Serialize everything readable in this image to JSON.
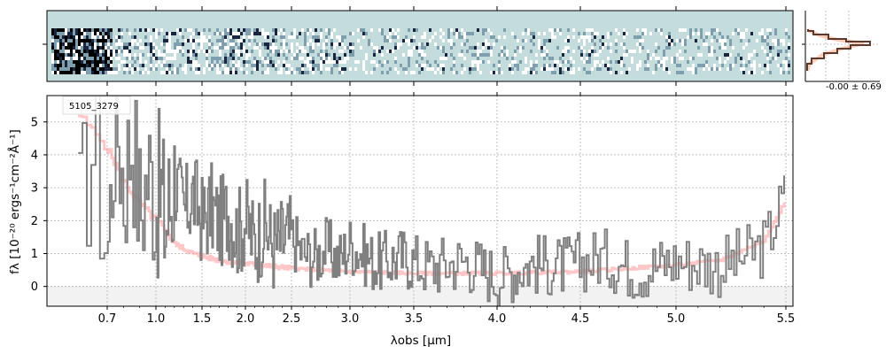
{
  "chart_data": [
    {
      "panel": "2d-spectrum",
      "type": "heatmap",
      "colormap": [
        "#ffffff",
        "#c5dcdc",
        "#7f9fae",
        "#1a2540",
        "#000000"
      ],
      "background": "#c5dcdc"
    },
    {
      "panel": "1d-spectrum",
      "type": "line",
      "object_label": "5105_3279",
      "xlabel": "λobs [μm]",
      "ylabel": "fλ [10⁻²⁰ ergs⁻¹cm⁻²Å⁻¹]",
      "x_scale": "nonlinear (pixel grid)",
      "xlim": [
        0.6,
        5.52
      ],
      "ylim": [
        -0.6,
        5.8
      ],
      "x_ticks": [
        "0.7",
        "1.0",
        "1.5",
        "2.0",
        "2.5",
        "3.0",
        "3.5",
        "4.0",
        "4.5",
        "5.0",
        "5.5"
      ],
      "x_tick_values": [
        0.7,
        1.0,
        1.5,
        2.0,
        2.5,
        3.0,
        3.5,
        4.0,
        4.5,
        5.0,
        5.5
      ],
      "y_ticks": [
        "0",
        "1",
        "2",
        "3",
        "4",
        "5"
      ],
      "y_tick_values": [
        0,
        1,
        2,
        3,
        4,
        5
      ],
      "grid": true,
      "series": [
        {
          "role": "flux",
          "color": "#808080",
          "x": [
            0.62,
            0.66,
            0.7,
            0.75,
            0.8,
            0.85,
            0.9,
            0.95,
            1.0,
            1.05,
            1.1,
            1.2,
            1.3,
            1.4,
            1.5,
            1.6,
            1.7,
            1.8,
            1.9,
            2.0,
            2.1,
            2.2,
            2.3,
            2.4,
            2.5,
            2.6,
            2.7,
            2.8,
            2.9,
            3.0,
            3.2,
            3.4,
            3.6,
            3.8,
            4.0,
            4.2,
            4.4,
            4.6,
            4.8,
            5.0,
            5.2,
            5.4,
            5.5
          ],
          "y": [
            2.0,
            4.5,
            1.0,
            5.5,
            3.0,
            4.8,
            2.2,
            3.6,
            2.6,
            2.9,
            1.8,
            3.3,
            2.2,
            2.8,
            2.0,
            2.4,
            1.9,
            2.3,
            1.6,
            2.0,
            1.3,
            1.9,
            1.2,
            1.4,
            1.5,
            1.0,
            0.9,
            1.2,
            0.8,
            1.3,
            0.7,
            0.9,
            0.6,
            0.8,
            0.3,
            0.7,
            0.6,
            0.9,
            0.5,
            0.8,
            0.6,
            1.2,
            2.9
          ]
        },
        {
          "role": "uncertainty",
          "color": "#ffb3b3",
          "x": [
            0.62,
            0.7,
            0.8,
            0.9,
            1.0,
            1.1,
            1.2,
            1.4,
            1.6,
            1.8,
            2.0,
            2.5,
            3.0,
            3.5,
            4.0,
            4.5,
            5.0,
            5.2,
            5.4,
            5.5
          ],
          "y": [
            5.2,
            4.2,
            3.2,
            2.5,
            2.0,
            1.7,
            1.3,
            1.0,
            0.85,
            0.75,
            0.7,
            0.55,
            0.45,
            0.4,
            0.4,
            0.45,
            0.65,
            0.8,
            1.4,
            2.7
          ]
        }
      ]
    },
    {
      "panel": "profile",
      "type": "line",
      "label": "-0.00 ± 0.69",
      "series": [
        {
          "role": "profile",
          "color": "#5c3a2e"
        },
        {
          "role": "model",
          "color": "#f4a582"
        }
      ]
    }
  ]
}
